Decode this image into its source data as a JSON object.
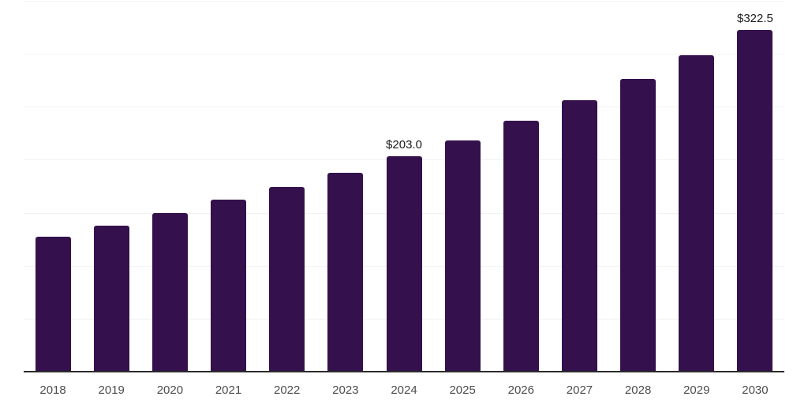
{
  "chart_data": {
    "type": "bar",
    "title": "",
    "xlabel": "",
    "ylabel": "",
    "categories": [
      "2018",
      "2019",
      "2020",
      "2021",
      "2022",
      "2023",
      "2024",
      "2025",
      "2026",
      "2027",
      "2028",
      "2029",
      "2030"
    ],
    "values": [
      127.5,
      137.5,
      150.0,
      162.0,
      174.5,
      188.0,
      203.0,
      218.5,
      236.5,
      256.0,
      276.5,
      298.5,
      322.5
    ],
    "data_labels": [
      "",
      "",
      "",
      "",
      "",
      "",
      "$203.0",
      "",
      "",
      "",
      "",
      "",
      "$322.5"
    ],
    "ylim": [
      0,
      350
    ],
    "gridline_interval": 50,
    "grid": "horizontal-only",
    "legend": "none",
    "y_axis_tick_labels": "none",
    "colors": {
      "bar": "#34114C",
      "gridline": "#F2F1F4",
      "axis_line": "#2B2B2B",
      "tick_label": "#4D4D4D",
      "data_label": "#1A1A1A",
      "background": "#FFFFFF"
    }
  }
}
